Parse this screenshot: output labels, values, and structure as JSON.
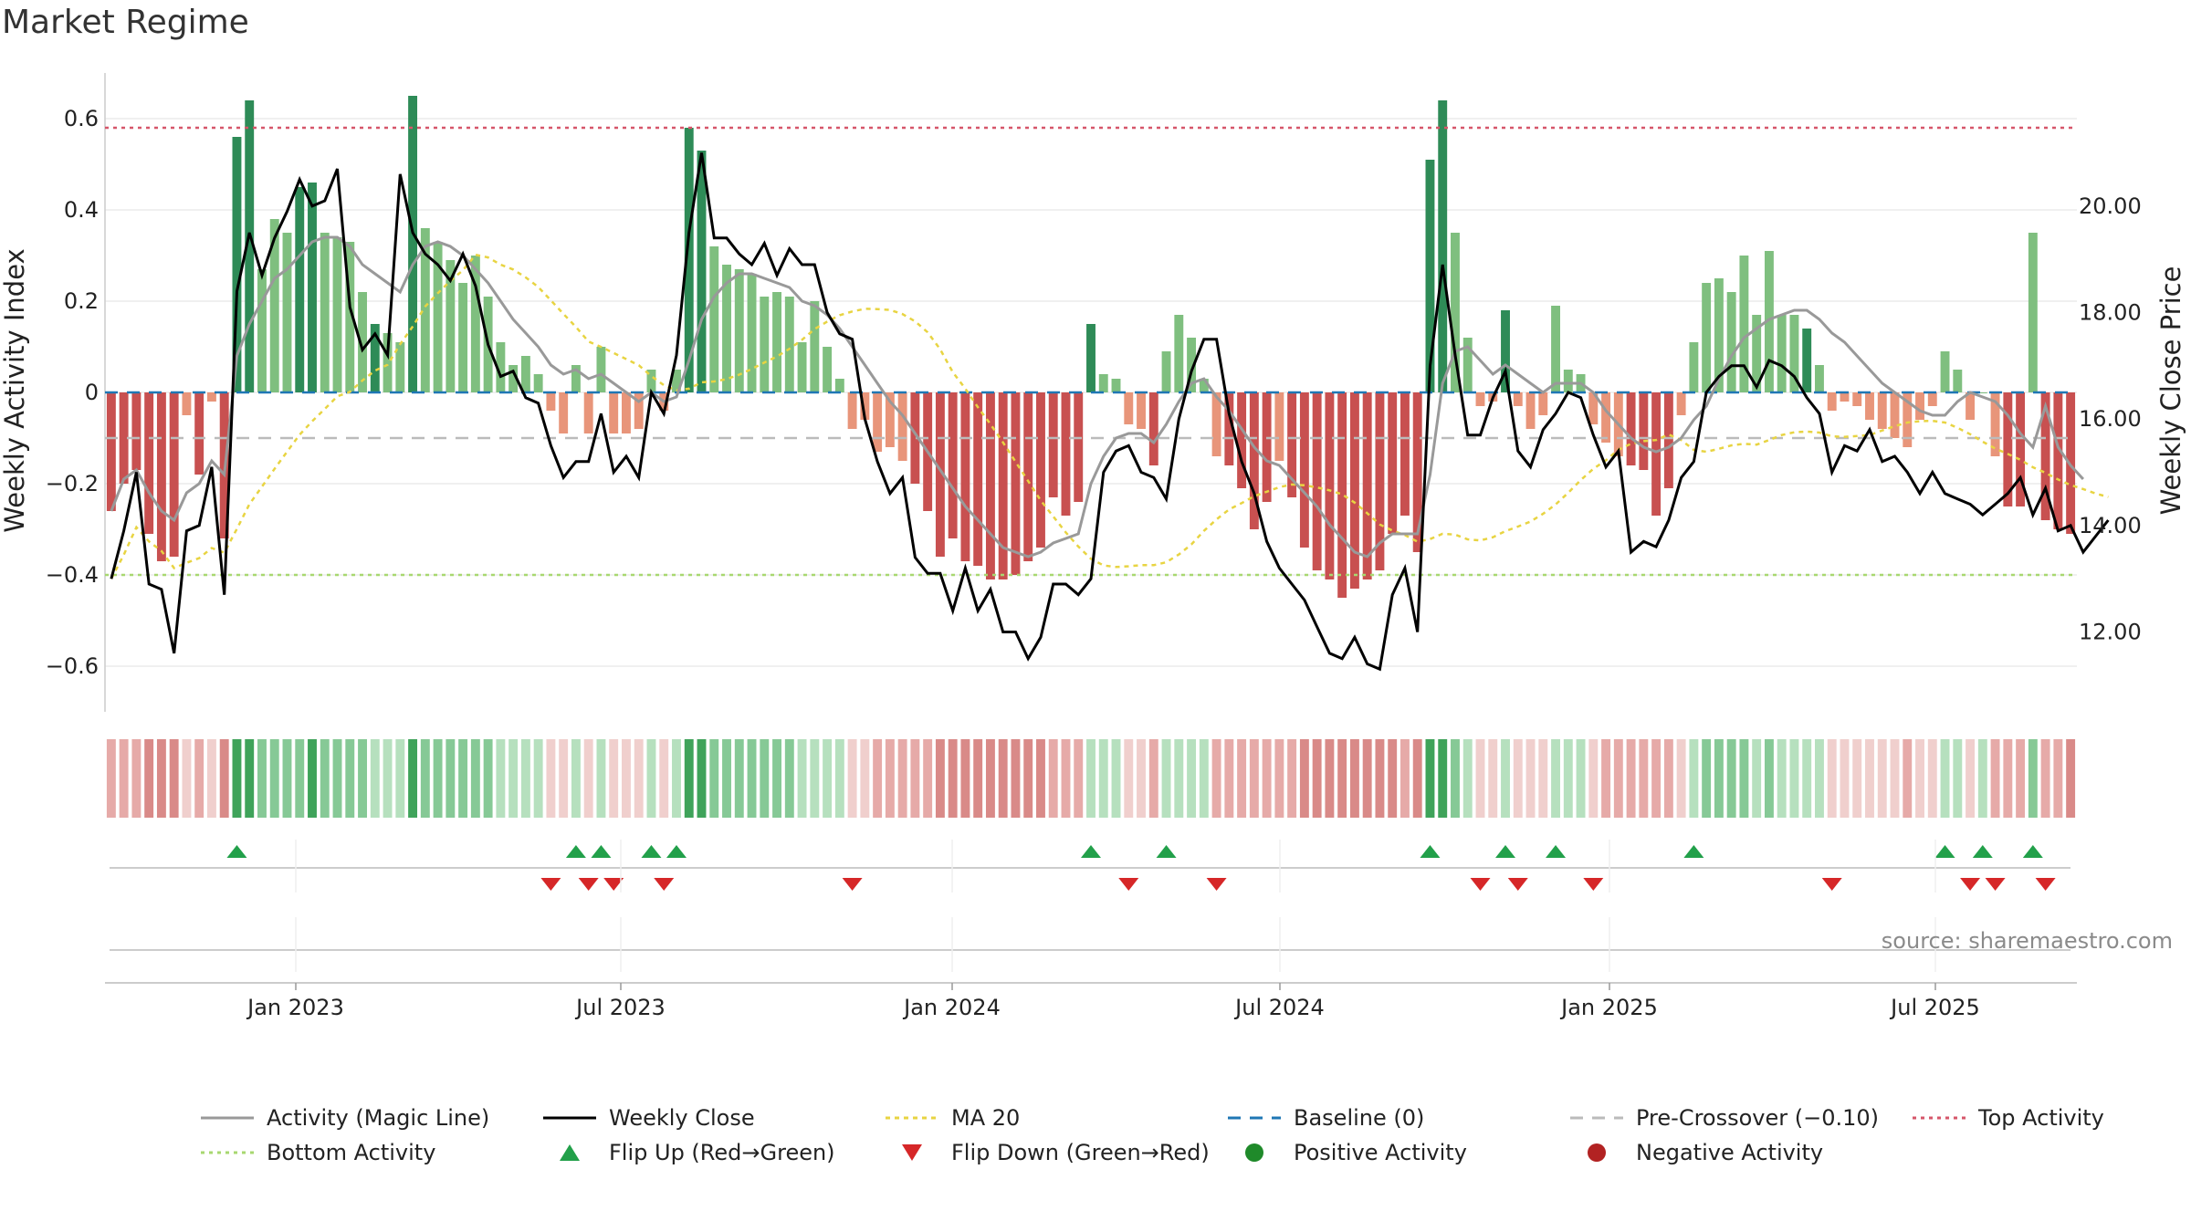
{
  "title": "Market Regime",
  "source": "source: sharemaestro.com",
  "colors": {
    "green_dark": "#2e8b57",
    "green_light": "#7fbf7f",
    "red_dark": "#c85050",
    "red_light": "#e8957a",
    "magic_line": "#999999",
    "close_line": "#000000",
    "ma20": "#e8d442",
    "baseline": "#1f77b4",
    "pre_crossover": "#bbbbbb",
    "top_activity": "#d6566a",
    "bottom_activity": "#a8d870",
    "flip_up": "#22a04a",
    "flip_down": "#d62728"
  },
  "chart_data": {
    "type": "bar",
    "y_left_label": "Weekly Activity Index",
    "y_right_label": "Weekly Close Price",
    "y_left_ticks": [
      "0.6",
      "0.4",
      "0.2",
      "0",
      "−0.2",
      "−0.4",
      "−0.6"
    ],
    "y_right_ticks": [
      "20.00",
      "18.00",
      "16.00",
      "14.00",
      "12.00"
    ],
    "x_ticks": [
      "Jan 2023",
      "Jul 2023",
      "Jan 2024",
      "Jul 2024",
      "Jan 2025",
      "Jul 2025"
    ],
    "ylim_left": [
      -0.7,
      0.7
    ],
    "ylim_right": [
      10.5,
      22.5
    ],
    "reference_lines": {
      "top_activity": 0.58,
      "bottom_activity": -0.4,
      "pre_crossover": -0.1,
      "baseline": 0
    },
    "activity": [
      -0.26,
      -0.2,
      -0.17,
      -0.31,
      -0.37,
      -0.36,
      -0.05,
      -0.18,
      -0.02,
      -0.32,
      0.56,
      0.64,
      0.27,
      0.38,
      0.35,
      0.45,
      0.46,
      0.35,
      0.34,
      0.33,
      0.22,
      0.15,
      0.13,
      0.11,
      0.65,
      0.36,
      0.33,
      0.29,
      0.24,
      0.3,
      0.21,
      0.11,
      0.06,
      0.08,
      0.04,
      -0.04,
      -0.09,
      0.06,
      -0.09,
      0.1,
      -0.09,
      -0.09,
      -0.08,
      0.05,
      -0.04,
      0.05,
      0.58,
      0.53,
      0.32,
      0.28,
      0.27,
      0.26,
      0.21,
      0.22,
      0.21,
      0.11,
      0.2,
      0.1,
      0.03,
      -0.08,
      -0.06,
      -0.13,
      -0.12,
      -0.15,
      -0.2,
      -0.26,
      -0.36,
      -0.32,
      -0.37,
      -0.38,
      -0.41,
      -0.41,
      -0.4,
      -0.37,
      -0.34,
      -0.23,
      -0.27,
      -0.24,
      0.15,
      0.04,
      0.03,
      -0.07,
      -0.08,
      -0.16,
      0.09,
      0.17,
      0.12,
      0.03,
      -0.14,
      -0.16,
      -0.21,
      -0.3,
      -0.24,
      -0.15,
      -0.23,
      -0.34,
      -0.39,
      -0.41,
      -0.45,
      -0.43,
      -0.41,
      -0.39,
      -0.31,
      -0.27,
      -0.35,
      0.51,
      0.64,
      0.35,
      0.12,
      -0.03,
      -0.02,
      0.18,
      -0.03,
      -0.08,
      -0.05,
      0.19,
      0.05,
      0.04,
      -0.07,
      -0.11,
      -0.14,
      -0.16,
      -0.17,
      -0.27,
      -0.21,
      -0.05,
      0.11,
      0.24,
      0.25,
      0.22,
      0.3,
      0.17,
      0.31,
      0.17,
      0.17,
      0.14,
      0.06,
      -0.04,
      -0.02,
      -0.03,
      -0.06,
      -0.08,
      -0.1,
      -0.12,
      -0.06,
      -0.03,
      0.09,
      0.05,
      -0.06,
      0.0,
      -0.14,
      -0.25,
      -0.25,
      0.35,
      -0.28,
      -0.3,
      -0.31
    ],
    "magic_line": [
      -0.26,
      -0.19,
      -0.17,
      -0.22,
      -0.26,
      -0.28,
      -0.22,
      -0.2,
      -0.15,
      -0.18,
      0.08,
      0.15,
      0.2,
      0.25,
      0.27,
      0.3,
      0.33,
      0.34,
      0.34,
      0.32,
      0.28,
      0.26,
      0.24,
      0.22,
      0.28,
      0.32,
      0.33,
      0.32,
      0.3,
      0.27,
      0.24,
      0.2,
      0.16,
      0.13,
      0.1,
      0.06,
      0.04,
      0.05,
      0.03,
      0.04,
      0.02,
      0.0,
      -0.02,
      0.0,
      -0.02,
      -0.01,
      0.07,
      0.16,
      0.21,
      0.24,
      0.26,
      0.26,
      0.25,
      0.24,
      0.23,
      0.2,
      0.19,
      0.17,
      0.14,
      0.1,
      0.06,
      0.02,
      -0.02,
      -0.05,
      -0.09,
      -0.13,
      -0.17,
      -0.21,
      -0.25,
      -0.28,
      -0.31,
      -0.34,
      -0.35,
      -0.36,
      -0.35,
      -0.33,
      -0.32,
      -0.31,
      -0.2,
      -0.14,
      -0.1,
      -0.09,
      -0.09,
      -0.11,
      -0.07,
      -0.02,
      0.02,
      0.03,
      -0.01,
      -0.04,
      -0.08,
      -0.12,
      -0.15,
      -0.16,
      -0.19,
      -0.22,
      -0.25,
      -0.29,
      -0.32,
      -0.35,
      -0.36,
      -0.33,
      -0.31,
      -0.31,
      -0.31,
      -0.18,
      0.02,
      0.09,
      0.1,
      0.07,
      0.04,
      0.06,
      0.04,
      0.02,
      0.0,
      0.02,
      0.02,
      0.02,
      0.0,
      -0.04,
      -0.07,
      -0.1,
      -0.12,
      -0.13,
      -0.12,
      -0.1,
      -0.06,
      -0.03,
      0.03,
      0.08,
      0.12,
      0.14,
      0.16,
      0.17,
      0.18,
      0.18,
      0.16,
      0.13,
      0.11,
      0.08,
      0.05,
      0.02,
      0.0,
      -0.02,
      -0.04,
      -0.05,
      -0.05,
      -0.02,
      0.0,
      -0.01,
      -0.02,
      -0.05,
      -0.09,
      -0.12,
      -0.03,
      -0.12,
      -0.16,
      -0.19
    ],
    "weekly_close": [
      13.0,
      13.9,
      15.0,
      12.9,
      12.8,
      11.6,
      13.9,
      14.0,
      15.1,
      12.7,
      18.4,
      19.5,
      18.7,
      19.4,
      19.9,
      20.5,
      20.0,
      20.1,
      20.7,
      18.1,
      17.3,
      17.6,
      17.2,
      20.6,
      19.5,
      19.1,
      18.9,
      18.6,
      19.1,
      18.5,
      17.4,
      16.8,
      16.9,
      16.4,
      16.3,
      15.5,
      14.9,
      15.2,
      15.2,
      16.1,
      15.0,
      15.3,
      14.9,
      16.5,
      16.1,
      17.2,
      19.5,
      21.0,
      19.4,
      19.4,
      19.1,
      18.9,
      19.3,
      18.7,
      19.2,
      18.9,
      18.9,
      18.0,
      17.6,
      17.5,
      16.0,
      15.2,
      14.6,
      14.9,
      13.4,
      13.1,
      13.1,
      12.4,
      13.2,
      12.4,
      12.8,
      12.0,
      12.0,
      11.5,
      11.9,
      12.9,
      12.9,
      12.7,
      13.0,
      15.0,
      15.4,
      15.5,
      15.0,
      14.9,
      14.5,
      16.0,
      16.9,
      17.5,
      17.5,
      16.1,
      15.2,
      14.6,
      13.7,
      13.2,
      12.9,
      12.6,
      12.1,
      11.6,
      11.5,
      11.9,
      11.4,
      11.3,
      12.7,
      13.2,
      12.0,
      17.0,
      18.9,
      17.2,
      15.7,
      15.7,
      16.4,
      16.9,
      15.4,
      15.1,
      15.8,
      16.1,
      16.5,
      16.4,
      15.7,
      15.1,
      15.4,
      13.5,
      13.7,
      13.6,
      14.1,
      14.9,
      15.2,
      16.5,
      16.8,
      17.0,
      17.0,
      16.6,
      17.1,
      17.0,
      16.8,
      16.4,
      16.1,
      15.0,
      15.5,
      15.4,
      15.8,
      15.2,
      15.3,
      15.0,
      14.6,
      15.0,
      14.6,
      14.5,
      14.4,
      14.2,
      14.4,
      14.6,
      14.9,
      14.2,
      14.7,
      13.9,
      14.0,
      13.5,
      13.8,
      14.1
    ]
  },
  "legend": [
    {
      "label": "Activity (Magic Line)",
      "icon": "gray-line"
    },
    {
      "label": "Weekly Close",
      "icon": "black-line"
    },
    {
      "label": "MA 20",
      "icon": "yellow-dotted-line"
    },
    {
      "label": "Baseline (0)",
      "icon": "blue-dashed-line"
    },
    {
      "label": "Pre-Crossover (−0.10)",
      "icon": "gray-dashed-line"
    },
    {
      "label": "Top Activity",
      "icon": "red-dotted-line"
    },
    {
      "label": "Bottom Activity",
      "icon": "green-dotted-line"
    },
    {
      "label": "Flip Up (Red→Green)",
      "icon": "triangle-up"
    },
    {
      "label": "Flip Down (Green→Red)",
      "icon": "triangle-down"
    },
    {
      "label": "Positive Activity",
      "icon": "green-circle"
    },
    {
      "label": "Negative Activity",
      "icon": "red-circle"
    }
  ]
}
